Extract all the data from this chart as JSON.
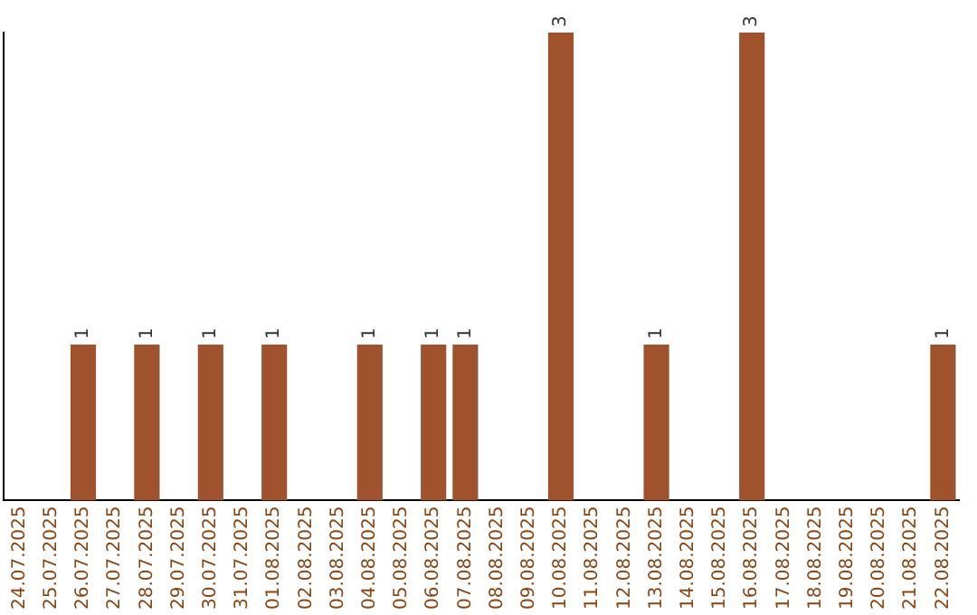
{
  "chart_data": {
    "type": "bar",
    "categories": [
      "24.07.2025",
      "25.07.2025",
      "26.07.2025",
      "27.07.2025",
      "28.07.2025",
      "29.07.2025",
      "30.07.2025",
      "31.07.2025",
      "01.08.2025",
      "02.08.2025",
      "03.08.2025",
      "04.08.2025",
      "05.08.2025",
      "06.08.2025",
      "07.08.2025",
      "08.08.2025",
      "09.08.2025",
      "10.08.2025",
      "11.08.2025",
      "12.08.2025",
      "13.08.2025",
      "14.08.2025",
      "15.08.2025",
      "16.08.2025",
      "17.08.2025",
      "18.08.2025",
      "19.08.2025",
      "20.08.2025",
      "21.08.2025",
      "22.08.2025"
    ],
    "values": [
      0,
      0,
      1,
      0,
      1,
      0,
      1,
      0,
      1,
      0,
      0,
      1,
      0,
      1,
      1,
      0,
      0,
      3,
      0,
      0,
      1,
      0,
      0,
      3,
      0,
      0,
      0,
      0,
      0,
      1
    ],
    "color": "#a0522d",
    "value_labels": [
      null,
      null,
      "1",
      null,
      "1",
      null,
      "1",
      null,
      "1",
      null,
      null,
      "1",
      null,
      "1",
      "1",
      null,
      null,
      "3",
      null,
      null,
      "1",
      null,
      null,
      "3",
      null,
      null,
      null,
      null,
      null,
      "1"
    ],
    "grid": false,
    "legend": false,
    "tick_labels": "x"
  }
}
